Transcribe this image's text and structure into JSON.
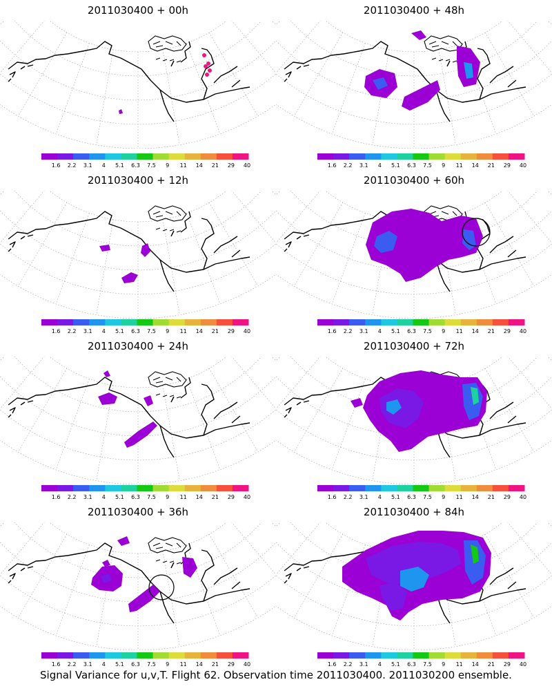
{
  "panels": [
    {
      "title": "2011030400 + 00h",
      "lead": "00h"
    },
    {
      "title": "2011030400 + 48h",
      "lead": "48h"
    },
    {
      "title": "2011030400 + 12h",
      "lead": "12h"
    },
    {
      "title": "2011030400 + 60h",
      "lead": "60h"
    },
    {
      "title": "2011030400 + 24h",
      "lead": "24h"
    },
    {
      "title": "2011030400 + 72h",
      "lead": "72h"
    },
    {
      "title": "2011030400 + 36h",
      "lead": "36h"
    },
    {
      "title": "2011030400 + 84h",
      "lead": "84h"
    }
  ],
  "colorbar": {
    "labels": [
      "1.6",
      "2.2",
      "3.1",
      "4",
      "5.1",
      "6.3",
      "7.5",
      "9",
      "11",
      "14",
      "21",
      "29",
      "40"
    ],
    "colors": [
      "#9b00d4",
      "#7a19e6",
      "#3a5cf0",
      "#1e96f0",
      "#1ec8e0",
      "#1ed2a0",
      "#14c814",
      "#a0dc32",
      "#dcdc3c",
      "#e6b43c",
      "#f08c3c",
      "#f5503c",
      "#f01482"
    ]
  },
  "footer": "Signal Variance for u,v,T. Flight 62. Observation time 2011030400. 2011030200 ensemble."
}
